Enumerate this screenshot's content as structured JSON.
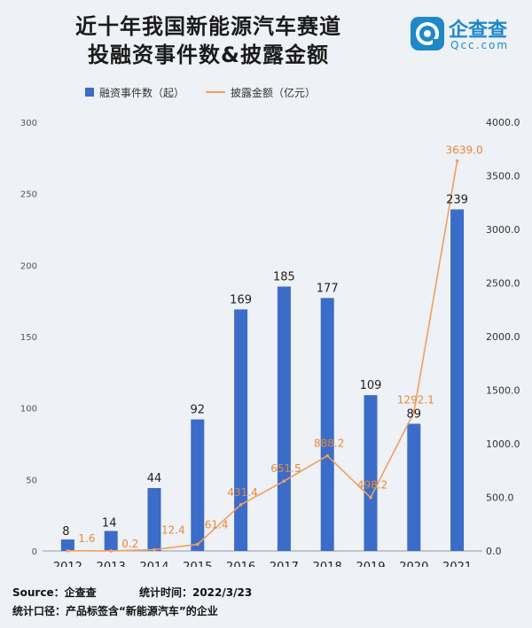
{
  "title": {
    "line1": "近十年我国新能源汽车赛道",
    "line2": "投融资事件数&披露金额"
  },
  "logo": {
    "cn": "企查查",
    "en": "Qcc.com",
    "icon": "qcc-logo-icon"
  },
  "legend": {
    "bar_label": "融资事件数（起）",
    "line_label": "披露金额（亿元）"
  },
  "footer": {
    "source": "Source：企查查",
    "stat_time": "统计时间：2022/3/23",
    "scope": "统计口径：产品标签含“新能源汽车”的企业"
  },
  "colors": {
    "bar": "#3a6cc8",
    "line": "#f0a060",
    "line_label": "#e88a3a"
  },
  "chart_data": {
    "type": "bar",
    "categories": [
      "2012",
      "2013",
      "2014",
      "2015",
      "2016",
      "2017",
      "2018",
      "2019",
      "2020",
      "2021"
    ],
    "series": [
      {
        "name": "融资事件数（起）",
        "type": "bar",
        "axis": "left",
        "values": [
          8,
          14,
          44,
          92,
          169,
          185,
          177,
          109,
          89,
          239
        ],
        "labels": [
          "8",
          "14",
          "44",
          "92",
          "169",
          "185",
          "177",
          "109",
          "89",
          "239"
        ]
      },
      {
        "name": "披露金额（亿元）",
        "type": "line",
        "axis": "right",
        "values": [
          1.6,
          0.2,
          12.4,
          61.4,
          431.4,
          651.5,
          888.2,
          498.2,
          1292.1,
          3639.0
        ],
        "labels": [
          "1.6",
          "0.2",
          "12.4",
          "61.4",
          "431.4",
          "651.5",
          "888.2",
          "498.2",
          "1292.1",
          "3639.0"
        ]
      }
    ],
    "y_left": {
      "range": [
        0,
        300
      ],
      "ticks": [
        "0",
        "50",
        "100",
        "150",
        "200",
        "250",
        "300"
      ]
    },
    "y_right": {
      "range": [
        0,
        4000
      ],
      "ticks": [
        "0.0",
        "500.0",
        "1000.0",
        "1500.0",
        "2000.0",
        "2500.0",
        "3000.0",
        "3500.0",
        "4000.0"
      ]
    },
    "grid": false,
    "legend_position": "top"
  }
}
